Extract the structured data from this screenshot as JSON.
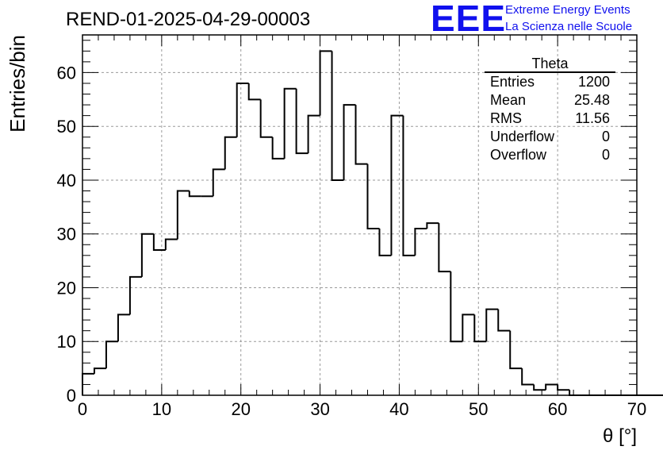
{
  "title": "REND-01-2025-04-29-00003",
  "logo": {
    "mark": "EEE",
    "line1": "Extreme Energy Events",
    "line2": "La Scienza nelle Scuole",
    "color": "#1010ee"
  },
  "stats": {
    "name": "Theta",
    "rows": [
      {
        "label": "Entries",
        "value": "1200"
      },
      {
        "label": "Mean",
        "value": "25.48"
      },
      {
        "label": "RMS",
        "value": "11.56"
      },
      {
        "label": "Underflow",
        "value": "0"
      },
      {
        "label": "Overflow",
        "value": "0"
      }
    ]
  },
  "chart_data": {
    "type": "bar",
    "style": "histogram-step",
    "title": "REND-01-2025-04-29-00003",
    "xlabel": "θ [°]",
    "ylabel": "Entries/bin",
    "xlim": [
      0,
      70
    ],
    "ylim": [
      0,
      67
    ],
    "bin_width": 1.5,
    "x_bin_edges_start": 0,
    "values": [
      4,
      5,
      10,
      15,
      22,
      30,
      27,
      29,
      38,
      37,
      37,
      42,
      48,
      58,
      55,
      48,
      44,
      57,
      45,
      52,
      64,
      40,
      54,
      43,
      31,
      26,
      52,
      26,
      31,
      32,
      23,
      10,
      15,
      10,
      16,
      12,
      5,
      2,
      1,
      2,
      1,
      0,
      0,
      0,
      0,
      0,
      0,
      0,
      0,
      0,
      0,
      0,
      0,
      0,
      0,
      0,
      0,
      0,
      0,
      0
    ],
    "x_ticks": [
      0,
      10,
      20,
      30,
      40,
      50,
      60,
      70
    ],
    "y_ticks": [
      0,
      10,
      20,
      30,
      40,
      50,
      60
    ],
    "x_tick_labels": [
      "0",
      "10",
      "20",
      "30",
      "40",
      "50",
      "60",
      "70"
    ],
    "y_tick_labels": [
      "0",
      "10",
      "20",
      "30",
      "40",
      "50",
      "60"
    ],
    "grid": true,
    "line_color": "#000000"
  }
}
